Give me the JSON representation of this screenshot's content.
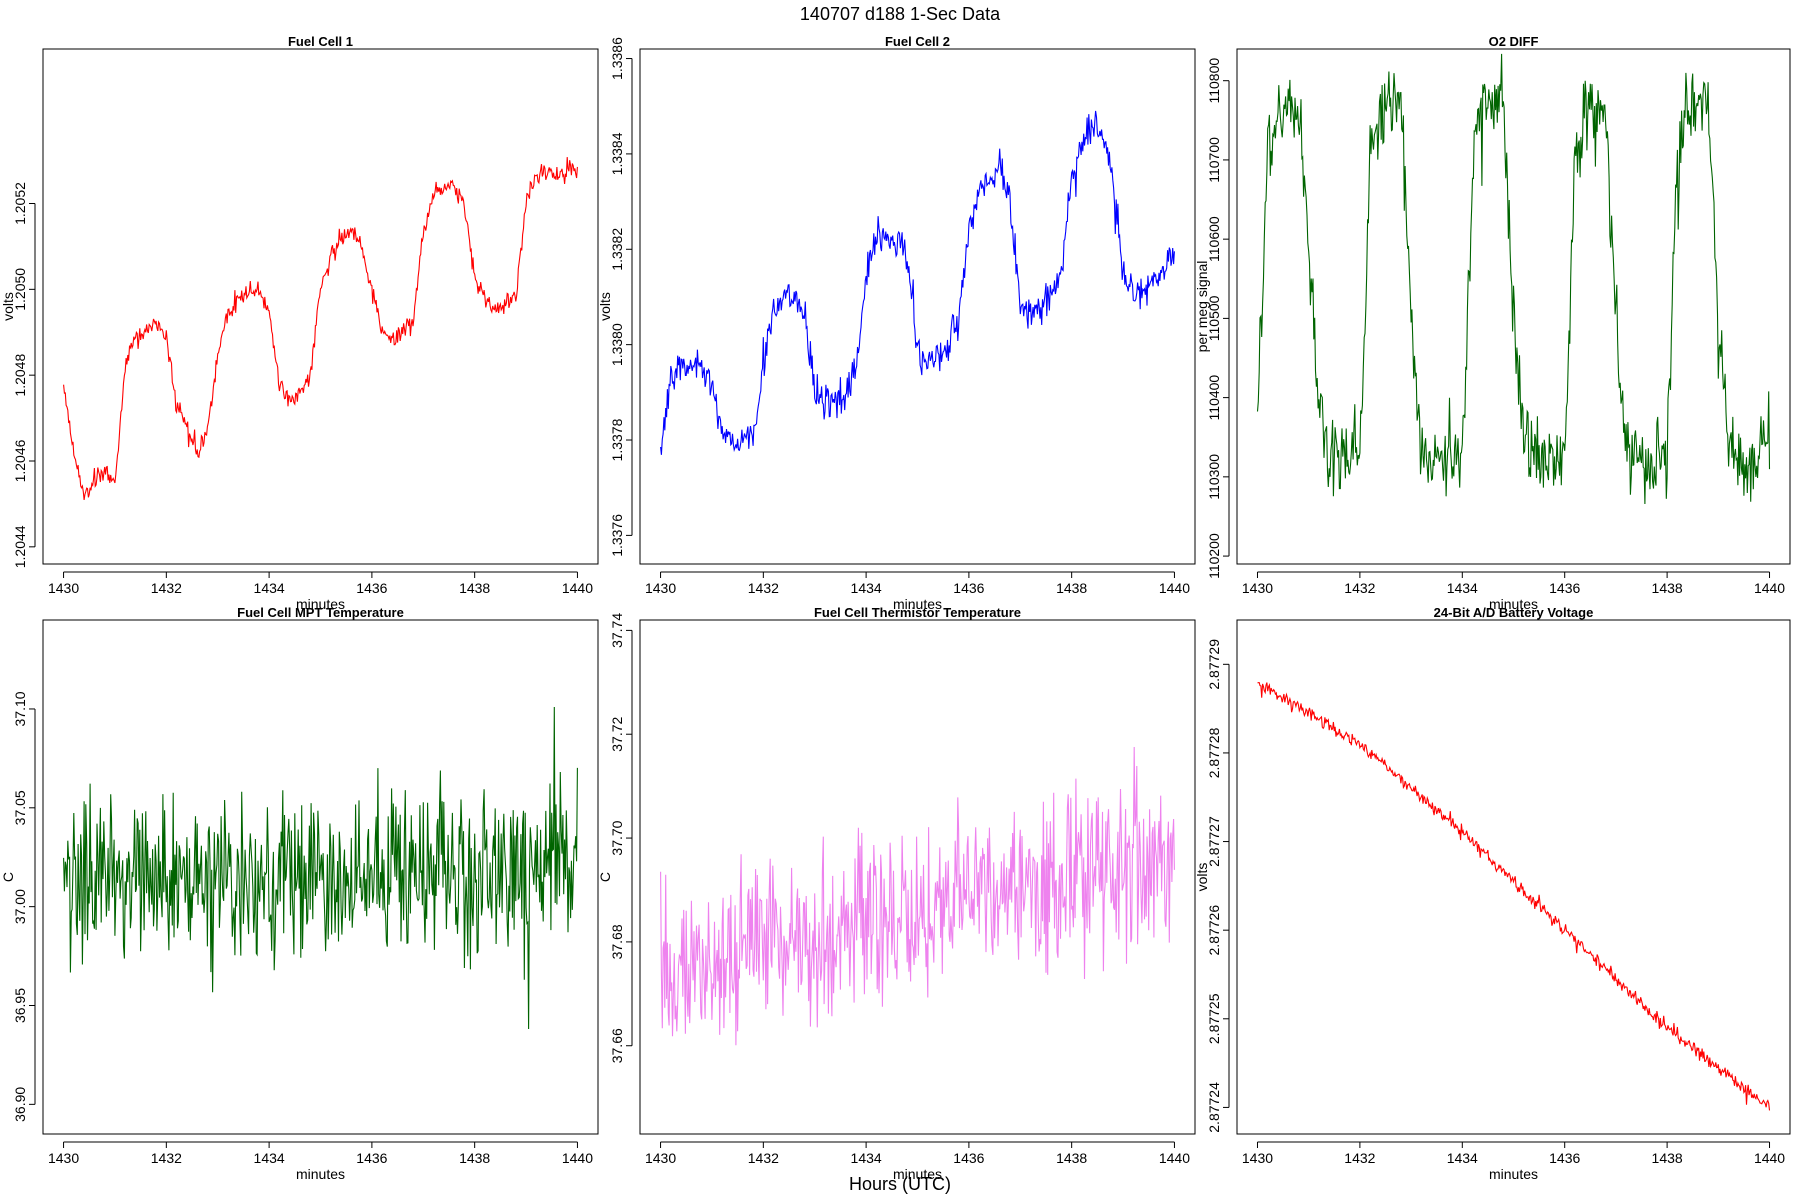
{
  "figure": {
    "title": "140707   d188   1-Sec Data",
    "xlabel": "Hours (UTC)"
  },
  "chart_data": [
    {
      "type": "line",
      "title": "Fuel Cell 1",
      "xlabel": "minutes",
      "ylabel": "volts",
      "color": "#ff0000",
      "xlim": [
        1429.6,
        1440.4
      ],
      "ylim": [
        1.20436,
        1.20556
      ],
      "xticks": [
        1430,
        1432,
        1434,
        1436,
        1438,
        1440
      ],
      "xtick_labels": [
        "1430",
        "1432",
        "1434",
        "1436",
        "1438",
        "1440"
      ],
      "yticks": [
        1.2044,
        1.2046,
        1.2048,
        1.205,
        1.2052
      ],
      "ytick_labels": [
        "1.2044",
        "1.2046",
        "1.2048",
        "1.2050",
        "1.2052"
      ],
      "series": [
        {
          "name": "Fuel Cell 1",
          "x": [
            1430.0,
            1430.2,
            1430.4,
            1430.6,
            1430.8,
            1431.0,
            1431.2,
            1431.4,
            1431.6,
            1431.8,
            1432.0,
            1432.2,
            1432.4,
            1432.6,
            1432.8,
            1433.0,
            1433.2,
            1433.4,
            1433.6,
            1433.8,
            1434.0,
            1434.2,
            1434.4,
            1434.6,
            1434.8,
            1435.0,
            1435.2,
            1435.4,
            1435.6,
            1435.8,
            1436.0,
            1436.2,
            1436.4,
            1436.6,
            1436.8,
            1437.0,
            1437.2,
            1437.4,
            1437.6,
            1437.8,
            1438.0,
            1438.2,
            1438.4,
            1438.6,
            1438.8,
            1439.0,
            1439.2,
            1439.4,
            1439.6,
            1439.8,
            1440.0
          ],
          "y": [
            1.20478,
            1.20462,
            1.20452,
            1.20456,
            1.20458,
            1.20455,
            1.20482,
            1.20488,
            1.2049,
            1.20492,
            1.20488,
            1.20472,
            1.20468,
            1.20462,
            1.20466,
            1.20485,
            1.20495,
            1.20498,
            1.205,
            1.205,
            1.20495,
            1.20478,
            1.20474,
            1.20476,
            1.2048,
            1.205,
            1.20508,
            1.20512,
            1.20514,
            1.2051,
            1.205,
            1.2049,
            1.20488,
            1.2049,
            1.20492,
            1.20512,
            1.20522,
            1.20524,
            1.20524,
            1.2052,
            1.20502,
            1.20498,
            1.20495,
            1.20497,
            1.20498,
            1.2052,
            1.20526,
            1.20528,
            1.20527,
            1.20527,
            1.20528
          ],
          "noise": 2e-05
        }
      ]
    },
    {
      "type": "line",
      "title": "Fuel Cell 2",
      "xlabel": "minutes",
      "ylabel": "volts",
      "color": "#0000ff",
      "xlim": [
        1429.6,
        1440.4
      ],
      "ylim": [
        1.33754,
        1.33862
      ],
      "xticks": [
        1430,
        1432,
        1434,
        1436,
        1438,
        1440
      ],
      "xtick_labels": [
        "1430",
        "1432",
        "1434",
        "1436",
        "1438",
        "1440"
      ],
      "yticks": [
        1.3376,
        1.3378,
        1.338,
        1.3382,
        1.3384,
        1.3386
      ],
      "ytick_labels": [
        "1.3376",
        "1.3378",
        "1.3380",
        "1.3382",
        "1.3384",
        "1.3386"
      ],
      "series": [
        {
          "name": "Fuel Cell 2",
          "x": [
            1430.0,
            1430.2,
            1430.4,
            1430.6,
            1430.8,
            1431.0,
            1431.2,
            1431.4,
            1431.6,
            1431.8,
            1432.0,
            1432.2,
            1432.4,
            1432.6,
            1432.8,
            1433.0,
            1433.2,
            1433.4,
            1433.6,
            1433.8,
            1434.0,
            1434.2,
            1434.4,
            1434.6,
            1434.8,
            1435.0,
            1435.2,
            1435.4,
            1435.6,
            1435.8,
            1436.0,
            1436.2,
            1436.4,
            1436.6,
            1436.8,
            1437.0,
            1437.2,
            1437.4,
            1437.6,
            1437.8,
            1438.0,
            1438.2,
            1438.4,
            1438.6,
            1438.8,
            1439.0,
            1439.2,
            1439.4,
            1439.6,
            1439.8,
            1440.0
          ],
          "y": [
            1.3378,
            1.33792,
            1.33796,
            1.33796,
            1.33796,
            1.3379,
            1.33782,
            1.3378,
            1.3378,
            1.3378,
            1.33795,
            1.33808,
            1.3381,
            1.3381,
            1.33806,
            1.3379,
            1.33788,
            1.33788,
            1.3379,
            1.33795,
            1.33815,
            1.33822,
            1.33822,
            1.33822,
            1.33818,
            1.338,
            1.33796,
            1.33798,
            1.338,
            1.33805,
            1.33825,
            1.33832,
            1.33835,
            1.33838,
            1.3383,
            1.33808,
            1.33806,
            1.33808,
            1.3381,
            1.33815,
            1.33835,
            1.33842,
            1.33845,
            1.33845,
            1.33835,
            1.33815,
            1.3381,
            1.33812,
            1.33814,
            1.33816,
            1.33818
          ],
          "noise": 3e-05
        }
      ]
    },
    {
      "type": "line",
      "title": "O2 DIFF",
      "xlabel": "minutes",
      "ylabel": "per meg signal",
      "color": "#006400",
      "xlim": [
        1429.6,
        1440.4
      ],
      "ylim": [
        110190,
        110840
      ],
      "xticks": [
        1430,
        1432,
        1434,
        1436,
        1438,
        1440
      ],
      "xtick_labels": [
        "1430",
        "1432",
        "1434",
        "1436",
        "1438",
        "1440"
      ],
      "yticks": [
        110200,
        110300,
        110400,
        110500,
        110600,
        110700,
        110800
      ],
      "ytick_labels": [
        "110200",
        "110300",
        "110400",
        "110500",
        "110600",
        "110700",
        "110800"
      ],
      "series": [
        {
          "name": "O2 DIFF",
          "x": [
            1430.0,
            1430.2,
            1430.4,
            1430.6,
            1430.8,
            1431.0,
            1431.2,
            1431.4,
            1431.6,
            1431.8,
            1432.0,
            1432.2,
            1432.4,
            1432.6,
            1432.8,
            1433.0,
            1433.2,
            1433.4,
            1433.6,
            1433.8,
            1434.0,
            1434.2,
            1434.4,
            1434.6,
            1434.8,
            1435.0,
            1435.2,
            1435.4,
            1435.6,
            1435.8,
            1436.0,
            1436.2,
            1436.4,
            1436.6,
            1436.8,
            1437.0,
            1437.2,
            1437.4,
            1437.6,
            1437.8,
            1438.0,
            1438.2,
            1438.4,
            1438.6,
            1438.8,
            1439.0,
            1439.2,
            1439.4,
            1439.6,
            1439.8,
            1440.0
          ],
          "y": [
            110370,
            110700,
            110760,
            110760,
            110760,
            110600,
            110380,
            110330,
            110330,
            110330,
            110330,
            110700,
            110770,
            110775,
            110775,
            110500,
            110340,
            110320,
            110320,
            110320,
            110330,
            110700,
            110770,
            110775,
            110770,
            110500,
            110340,
            110320,
            110320,
            110320,
            110330,
            110700,
            110765,
            110770,
            110770,
            110500,
            110340,
            110320,
            110320,
            110320,
            110330,
            110700,
            110770,
            110770,
            110770,
            110500,
            110350,
            110320,
            110320,
            110320,
            110370
          ],
          "noise": 40
        }
      ]
    },
    {
      "type": "line",
      "title": "Fuel Cell MPT Temperature",
      "xlabel": "minutes",
      "ylabel": "C",
      "color": "#006400",
      "xlim": [
        1429.6,
        1440.4
      ],
      "ylim": [
        36.885,
        37.145
      ],
      "xticks": [
        1430,
        1432,
        1434,
        1436,
        1438,
        1440
      ],
      "xtick_labels": [
        "1430",
        "1432",
        "1434",
        "1436",
        "1438",
        "1440"
      ],
      "yticks": [
        36.9,
        36.95,
        37.0,
        37.05,
        37.1
      ],
      "ytick_labels": [
        "36.90",
        "36.95",
        "37.00",
        "37.05",
        "37.10"
      ],
      "series": [
        {
          "name": "Fuel Cell MPT Temperature",
          "x": [
            1430.0,
            1432.0,
            1434.0,
            1436.0,
            1438.0,
            1440.0
          ],
          "y": [
            37.015,
            37.015,
            37.015,
            37.015,
            37.015,
            37.015
          ],
          "noise": 0.035
        }
      ]
    },
    {
      "type": "line",
      "title": "Fuel Cell Thermistor Temperature",
      "xlabel": "minutes",
      "ylabel": "C",
      "color": "#ee82ee",
      "xlim": [
        1429.6,
        1440.4
      ],
      "ylim": [
        37.643,
        37.742
      ],
      "xticks": [
        1430,
        1432,
        1434,
        1436,
        1438,
        1440
      ],
      "xtick_labels": [
        "1430",
        "1432",
        "1434",
        "1436",
        "1438",
        "1440"
      ],
      "yticks": [
        37.66,
        37.68,
        37.7,
        37.72,
        37.74
      ],
      "ytick_labels": [
        "37.66",
        "37.68",
        "37.70",
        "37.72",
        "37.74"
      ],
      "series": [
        {
          "name": "Fuel Cell Thermistor Temperature",
          "x": [
            1430.0,
            1432.0,
            1434.0,
            1436.0,
            1438.0,
            1440.0
          ],
          "y": [
            37.673,
            37.679,
            37.684,
            37.688,
            37.692,
            37.698
          ],
          "noise": 0.013
        }
      ]
    },
    {
      "type": "line",
      "title": "24-Bit A/D Battery Voltage",
      "xlabel": "minutes",
      "ylabel": "volts",
      "color": "#ff0000",
      "xlim": [
        1429.6,
        1440.4
      ],
      "ylim": [
        2.877237,
        2.877295
      ],
      "xticks": [
        1430,
        1432,
        1434,
        1436,
        1438,
        1440
      ],
      "xtick_labels": [
        "1430",
        "1432",
        "1434",
        "1436",
        "1438",
        "1440"
      ],
      "yticks": [
        2.87724,
        2.87725,
        2.87726,
        2.87727,
        2.87728,
        2.87729
      ],
      "ytick_labels": [
        "2.87724",
        "2.87725",
        "2.87726",
        "2.87727",
        "2.87728",
        "2.87729"
      ],
      "series": [
        {
          "name": "24-Bit A/D Battery Voltage",
          "x": [
            1430.0,
            1432.0,
            1434.0,
            1436.0,
            1438.0,
            1440.0
          ],
          "y": [
            2.877288,
            2.877281,
            2.877271,
            2.87726,
            2.877249,
            2.87724
          ],
          "noise": 6e-07
        }
      ]
    }
  ]
}
